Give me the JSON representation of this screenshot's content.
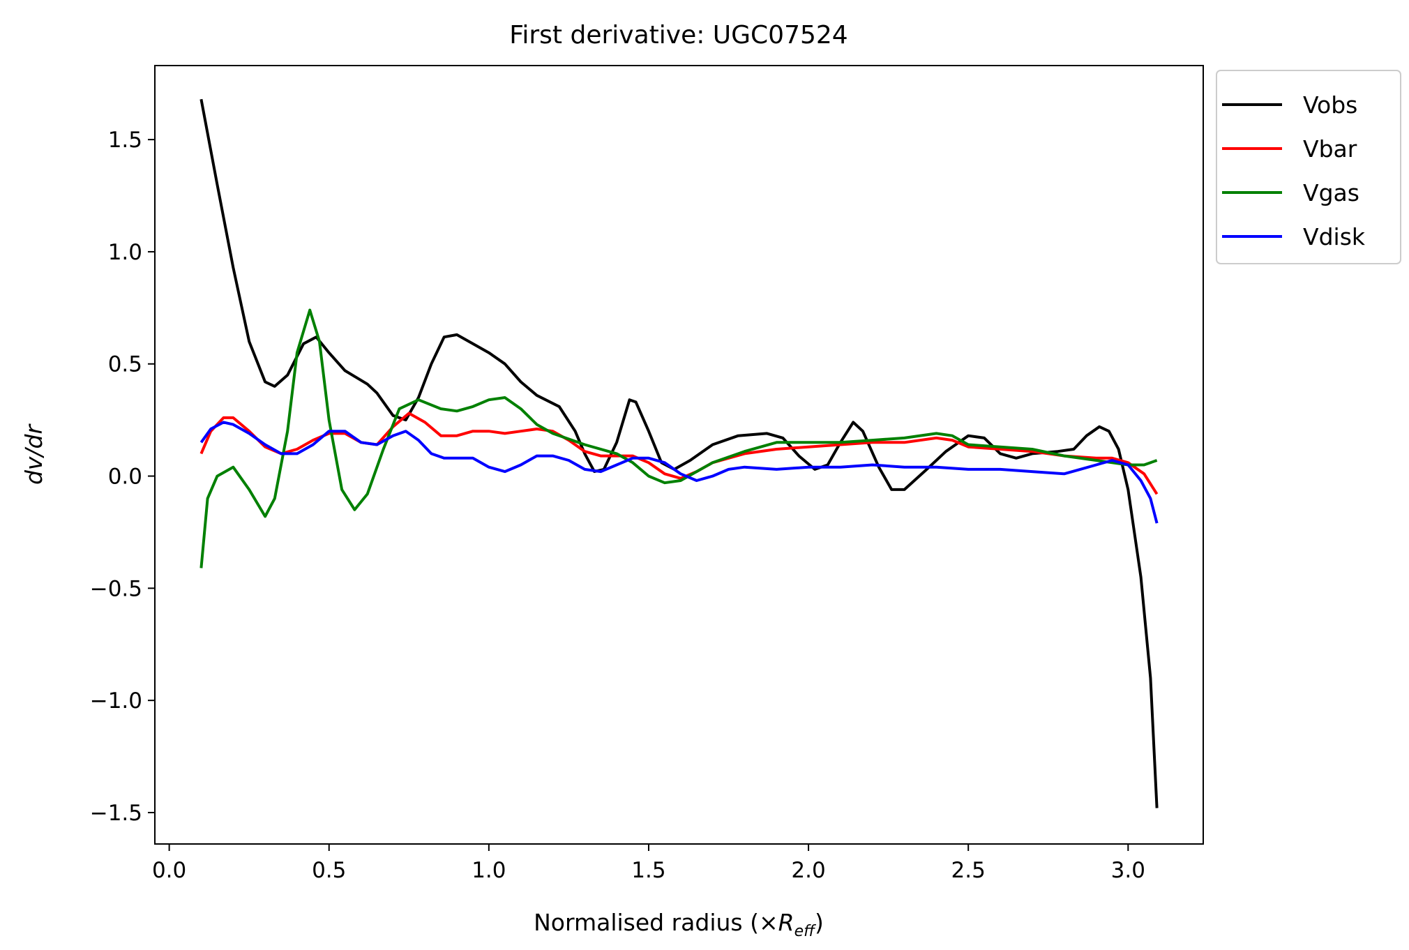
{
  "chart_data": {
    "type": "line",
    "title": "First derivative: UGC07524",
    "xlabel": "Normalised radius (×",
    "xlabel_math": "R",
    "xlabel_sub": "eff",
    "xlabel_close": ")",
    "ylabel": "dv/dr",
    "xlim": [
      -0.045,
      3.235
    ],
    "ylim": [
      -1.64,
      1.83
    ],
    "xticks": [
      0.0,
      0.5,
      1.0,
      1.5,
      2.0,
      2.5,
      3.0
    ],
    "xtick_labels": [
      "0.0",
      "0.5",
      "1.0",
      "1.5",
      "2.0",
      "2.5",
      "3.0"
    ],
    "yticks": [
      -1.5,
      -1.0,
      -0.5,
      0.0,
      0.5,
      1.0,
      1.5
    ],
    "ytick_labels": [
      "−1.5",
      "−1.0",
      "−0.5",
      "0.0",
      "0.5",
      "1.0",
      "1.5"
    ],
    "grid": false,
    "legend_position": "outside-top-right",
    "series": [
      {
        "name": "Vobs",
        "color": "#000000",
        "points": [
          [
            0.1,
            1.68
          ],
          [
            0.15,
            1.3
          ],
          [
            0.2,
            0.93
          ],
          [
            0.25,
            0.6
          ],
          [
            0.3,
            0.42
          ],
          [
            0.33,
            0.4
          ],
          [
            0.37,
            0.45
          ],
          [
            0.42,
            0.59
          ],
          [
            0.46,
            0.62
          ],
          [
            0.5,
            0.55
          ],
          [
            0.55,
            0.47
          ],
          [
            0.62,
            0.41
          ],
          [
            0.65,
            0.37
          ],
          [
            0.7,
            0.27
          ],
          [
            0.74,
            0.25
          ],
          [
            0.78,
            0.35
          ],
          [
            0.82,
            0.5
          ],
          [
            0.86,
            0.62
          ],
          [
            0.9,
            0.63
          ],
          [
            0.95,
            0.59
          ],
          [
            1.0,
            0.55
          ],
          [
            1.05,
            0.5
          ],
          [
            1.1,
            0.42
          ],
          [
            1.15,
            0.36
          ],
          [
            1.22,
            0.31
          ],
          [
            1.27,
            0.2
          ],
          [
            1.3,
            0.1
          ],
          [
            1.33,
            0.02
          ],
          [
            1.36,
            0.03
          ],
          [
            1.4,
            0.15
          ],
          [
            1.44,
            0.34
          ],
          [
            1.46,
            0.33
          ],
          [
            1.5,
            0.2
          ],
          [
            1.54,
            0.06
          ],
          [
            1.58,
            0.03
          ],
          [
            1.63,
            0.07
          ],
          [
            1.7,
            0.14
          ],
          [
            1.78,
            0.18
          ],
          [
            1.87,
            0.19
          ],
          [
            1.92,
            0.17
          ],
          [
            1.97,
            0.09
          ],
          [
            2.02,
            0.03
          ],
          [
            2.06,
            0.05
          ],
          [
            2.1,
            0.15
          ],
          [
            2.14,
            0.24
          ],
          [
            2.17,
            0.2
          ],
          [
            2.22,
            0.04
          ],
          [
            2.26,
            -0.06
          ],
          [
            2.3,
            -0.06
          ],
          [
            2.37,
            0.03
          ],
          [
            2.43,
            0.11
          ],
          [
            2.5,
            0.18
          ],
          [
            2.55,
            0.17
          ],
          [
            2.6,
            0.1
          ],
          [
            2.65,
            0.08
          ],
          [
            2.7,
            0.1
          ],
          [
            2.78,
            0.11
          ],
          [
            2.83,
            0.12
          ],
          [
            2.87,
            0.18
          ],
          [
            2.91,
            0.22
          ],
          [
            2.94,
            0.2
          ],
          [
            2.97,
            0.12
          ],
          [
            3.0,
            -0.06
          ],
          [
            3.04,
            -0.45
          ],
          [
            3.07,
            -0.9
          ],
          [
            3.09,
            -1.48
          ]
        ]
      },
      {
        "name": "Vbar",
        "color": "#ff0000",
        "points": [
          [
            0.1,
            0.1
          ],
          [
            0.13,
            0.2
          ],
          [
            0.17,
            0.26
          ],
          [
            0.2,
            0.26
          ],
          [
            0.25,
            0.2
          ],
          [
            0.3,
            0.13
          ],
          [
            0.35,
            0.1
          ],
          [
            0.4,
            0.12
          ],
          [
            0.45,
            0.16
          ],
          [
            0.5,
            0.19
          ],
          [
            0.55,
            0.19
          ],
          [
            0.6,
            0.15
          ],
          [
            0.65,
            0.14
          ],
          [
            0.7,
            0.22
          ],
          [
            0.75,
            0.28
          ],
          [
            0.8,
            0.24
          ],
          [
            0.85,
            0.18
          ],
          [
            0.9,
            0.18
          ],
          [
            0.95,
            0.2
          ],
          [
            1.0,
            0.2
          ],
          [
            1.05,
            0.19
          ],
          [
            1.1,
            0.2
          ],
          [
            1.15,
            0.21
          ],
          [
            1.2,
            0.2
          ],
          [
            1.25,
            0.16
          ],
          [
            1.3,
            0.11
          ],
          [
            1.35,
            0.09
          ],
          [
            1.4,
            0.09
          ],
          [
            1.45,
            0.09
          ],
          [
            1.5,
            0.06
          ],
          [
            1.55,
            0.01
          ],
          [
            1.6,
            -0.01
          ],
          [
            1.65,
            0.02
          ],
          [
            1.7,
            0.06
          ],
          [
            1.8,
            0.1
          ],
          [
            1.9,
            0.12
          ],
          [
            2.0,
            0.13
          ],
          [
            2.1,
            0.14
          ],
          [
            2.2,
            0.15
          ],
          [
            2.3,
            0.15
          ],
          [
            2.4,
            0.17
          ],
          [
            2.45,
            0.16
          ],
          [
            2.5,
            0.13
          ],
          [
            2.6,
            0.12
          ],
          [
            2.7,
            0.11
          ],
          [
            2.8,
            0.09
          ],
          [
            2.9,
            0.08
          ],
          [
            2.95,
            0.08
          ],
          [
            3.0,
            0.06
          ],
          [
            3.05,
            0.01
          ],
          [
            3.09,
            -0.08
          ]
        ]
      },
      {
        "name": "Vgas",
        "color": "#008000",
        "points": [
          [
            0.1,
            -0.41
          ],
          [
            0.12,
            -0.1
          ],
          [
            0.15,
            0.0
          ],
          [
            0.2,
            0.04
          ],
          [
            0.25,
            -0.06
          ],
          [
            0.3,
            -0.18
          ],
          [
            0.33,
            -0.1
          ],
          [
            0.37,
            0.2
          ],
          [
            0.4,
            0.55
          ],
          [
            0.44,
            0.74
          ],
          [
            0.47,
            0.6
          ],
          [
            0.5,
            0.25
          ],
          [
            0.54,
            -0.06
          ],
          [
            0.58,
            -0.15
          ],
          [
            0.62,
            -0.08
          ],
          [
            0.67,
            0.12
          ],
          [
            0.72,
            0.3
          ],
          [
            0.78,
            0.34
          ],
          [
            0.85,
            0.3
          ],
          [
            0.9,
            0.29
          ],
          [
            0.95,
            0.31
          ],
          [
            1.0,
            0.34
          ],
          [
            1.05,
            0.35
          ],
          [
            1.1,
            0.3
          ],
          [
            1.15,
            0.23
          ],
          [
            1.2,
            0.19
          ],
          [
            1.3,
            0.14
          ],
          [
            1.4,
            0.1
          ],
          [
            1.45,
            0.06
          ],
          [
            1.5,
            0.0
          ],
          [
            1.55,
            -0.03
          ],
          [
            1.6,
            -0.02
          ],
          [
            1.65,
            0.02
          ],
          [
            1.7,
            0.06
          ],
          [
            1.8,
            0.11
          ],
          [
            1.9,
            0.15
          ],
          [
            2.0,
            0.15
          ],
          [
            2.1,
            0.15
          ],
          [
            2.2,
            0.16
          ],
          [
            2.3,
            0.17
          ],
          [
            2.4,
            0.19
          ],
          [
            2.45,
            0.18
          ],
          [
            2.5,
            0.14
          ],
          [
            2.6,
            0.13
          ],
          [
            2.7,
            0.12
          ],
          [
            2.8,
            0.09
          ],
          [
            2.9,
            0.07
          ],
          [
            3.0,
            0.05
          ],
          [
            3.05,
            0.05
          ],
          [
            3.09,
            0.07
          ]
        ]
      },
      {
        "name": "Vdisk",
        "color": "#0000ff",
        "points": [
          [
            0.1,
            0.15
          ],
          [
            0.13,
            0.21
          ],
          [
            0.17,
            0.24
          ],
          [
            0.2,
            0.23
          ],
          [
            0.25,
            0.19
          ],
          [
            0.3,
            0.14
          ],
          [
            0.35,
            0.1
          ],
          [
            0.4,
            0.1
          ],
          [
            0.45,
            0.14
          ],
          [
            0.5,
            0.2
          ],
          [
            0.55,
            0.2
          ],
          [
            0.6,
            0.15
          ],
          [
            0.65,
            0.14
          ],
          [
            0.7,
            0.18
          ],
          [
            0.74,
            0.2
          ],
          [
            0.78,
            0.16
          ],
          [
            0.82,
            0.1
          ],
          [
            0.86,
            0.08
          ],
          [
            0.9,
            0.08
          ],
          [
            0.95,
            0.08
          ],
          [
            1.0,
            0.04
          ],
          [
            1.05,
            0.02
          ],
          [
            1.1,
            0.05
          ],
          [
            1.15,
            0.09
          ],
          [
            1.2,
            0.09
          ],
          [
            1.25,
            0.07
          ],
          [
            1.3,
            0.03
          ],
          [
            1.35,
            0.02
          ],
          [
            1.4,
            0.05
          ],
          [
            1.45,
            0.08
          ],
          [
            1.5,
            0.08
          ],
          [
            1.55,
            0.06
          ],
          [
            1.6,
            0.01
          ],
          [
            1.65,
            -0.02
          ],
          [
            1.7,
            0.0
          ],
          [
            1.75,
            0.03
          ],
          [
            1.8,
            0.04
          ],
          [
            1.9,
            0.03
          ],
          [
            2.0,
            0.04
          ],
          [
            2.1,
            0.04
          ],
          [
            2.2,
            0.05
          ],
          [
            2.3,
            0.04
          ],
          [
            2.4,
            0.04
          ],
          [
            2.5,
            0.03
          ],
          [
            2.6,
            0.03
          ],
          [
            2.7,
            0.02
          ],
          [
            2.8,
            0.01
          ],
          [
            2.85,
            0.03
          ],
          [
            2.9,
            0.05
          ],
          [
            2.95,
            0.07
          ],
          [
            3.0,
            0.05
          ],
          [
            3.04,
            -0.02
          ],
          [
            3.07,
            -0.1
          ],
          [
            3.09,
            -0.21
          ]
        ]
      }
    ]
  }
}
